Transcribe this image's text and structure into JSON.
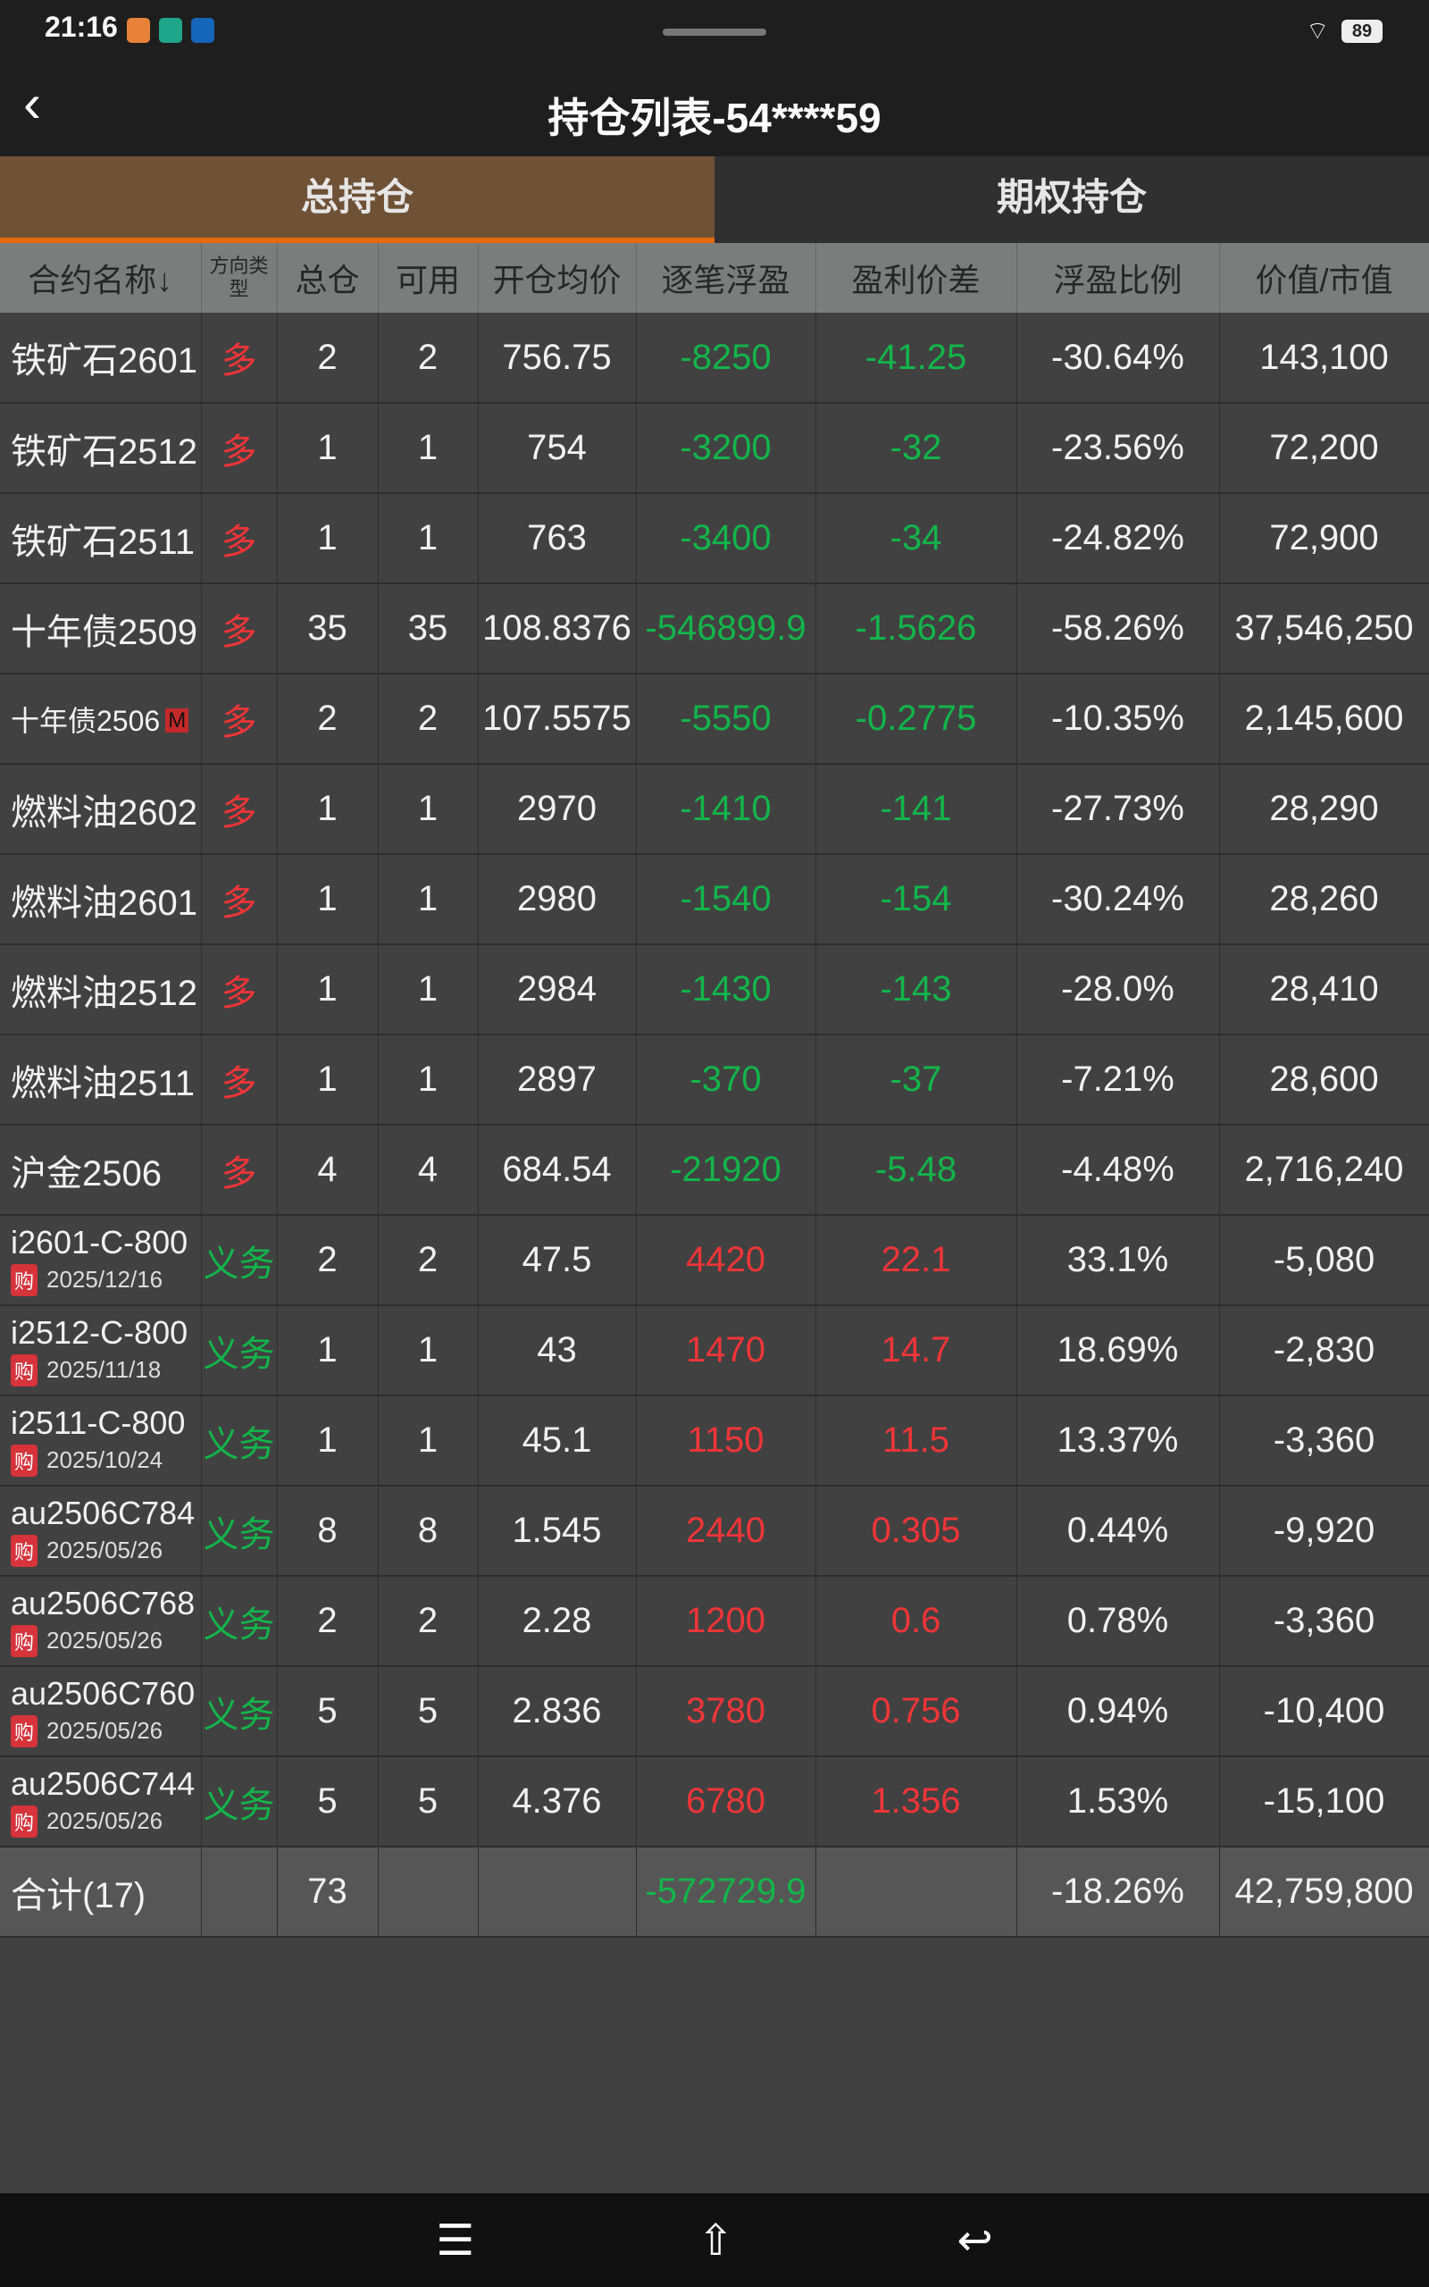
{
  "status_bar": {
    "time": "21:16",
    "battery": "89"
  },
  "header": {
    "title": "持仓列表-54****59",
    "back_icon": "chevron-left-icon"
  },
  "tabs": [
    {
      "label": "总持仓",
      "active": true
    },
    {
      "label": "期权持仓",
      "active": false
    }
  ],
  "columns": [
    "合约名称↓",
    "方向类型",
    "总仓",
    "可用",
    "开仓均价",
    "逐笔浮盈",
    "盈利价差",
    "浮盈比例",
    "价值/市值"
  ],
  "colors": {
    "up": "#f03538",
    "down": "#13b54a",
    "accent": "#e56a0e",
    "tab_active": "#6f5136"
  },
  "rows": [
    {
      "name": "铁矿石2601",
      "dir": "多",
      "total": "2",
      "avail": "2",
      "avg": "756.75",
      "pnl": "-8250",
      "diff": "-41.25",
      "ratio": "-30.64%",
      "value": "143,100"
    },
    {
      "name": "铁矿石2512",
      "dir": "多",
      "total": "1",
      "avail": "1",
      "avg": "754",
      "pnl": "-3200",
      "diff": "-32",
      "ratio": "-23.56%",
      "value": "72,200"
    },
    {
      "name": "铁矿石2511",
      "dir": "多",
      "total": "1",
      "avail": "1",
      "avg": "763",
      "pnl": "-3400",
      "diff": "-34",
      "ratio": "-24.82%",
      "value": "72,900"
    },
    {
      "name": "十年债2509",
      "dir": "多",
      "total": "35",
      "avail": "35",
      "avg": "108.8376",
      "pnl": "-546899.9",
      "diff": "-1.5626",
      "ratio": "-58.26%",
      "value": "37,546,250"
    },
    {
      "name": "十年债2506",
      "badge": "M",
      "dir": "多",
      "total": "2",
      "avail": "2",
      "avg": "107.5575",
      "pnl": "-5550",
      "diff": "-0.2775",
      "ratio": "-10.35%",
      "value": "2,145,600"
    },
    {
      "name": "燃料油2602",
      "dir": "多",
      "total": "1",
      "avail": "1",
      "avg": "2970",
      "pnl": "-1410",
      "diff": "-141",
      "ratio": "-27.73%",
      "value": "28,290"
    },
    {
      "name": "燃料油2601",
      "dir": "多",
      "total": "1",
      "avail": "1",
      "avg": "2980",
      "pnl": "-1540",
      "diff": "-154",
      "ratio": "-30.24%",
      "value": "28,260"
    },
    {
      "name": "燃料油2512",
      "dir": "多",
      "total": "1",
      "avail": "1",
      "avg": "2984",
      "pnl": "-1430",
      "diff": "-143",
      "ratio": "-28.0%",
      "value": "28,410"
    },
    {
      "name": "燃料油2511",
      "dir": "多",
      "total": "1",
      "avail": "1",
      "avg": "2897",
      "pnl": "-370",
      "diff": "-37",
      "ratio": "-7.21%",
      "value": "28,600"
    },
    {
      "name": "沪金2506",
      "dir": "多",
      "total": "4",
      "avail": "4",
      "avg": "684.54",
      "pnl": "-21920",
      "diff": "-5.48",
      "ratio": "-4.48%",
      "value": "2,716,240"
    },
    {
      "name": "i2601-C-800",
      "tag": "购",
      "date": "2025/12/16",
      "dir": "义务",
      "total": "2",
      "avail": "2",
      "avg": "47.5",
      "pnl": "4420",
      "diff": "22.1",
      "ratio": "33.1%",
      "value": "-5,080"
    },
    {
      "name": "i2512-C-800",
      "tag": "购",
      "date": "2025/11/18",
      "dir": "义务",
      "total": "1",
      "avail": "1",
      "avg": "43",
      "pnl": "1470",
      "diff": "14.7",
      "ratio": "18.69%",
      "value": "-2,830"
    },
    {
      "name": "i2511-C-800",
      "tag": "购",
      "date": "2025/10/24",
      "dir": "义务",
      "total": "1",
      "avail": "1",
      "avg": "45.1",
      "pnl": "1150",
      "diff": "11.5",
      "ratio": "13.37%",
      "value": "-3,360"
    },
    {
      "name": "au2506C784",
      "tag": "购",
      "date": "2025/05/26",
      "dir": "义务",
      "total": "8",
      "avail": "8",
      "avg": "1.545",
      "pnl": "2440",
      "diff": "0.305",
      "ratio": "0.44%",
      "value": "-9,920"
    },
    {
      "name": "au2506C768",
      "tag": "购",
      "date": "2025/05/26",
      "dir": "义务",
      "total": "2",
      "avail": "2",
      "avg": "2.28",
      "pnl": "1200",
      "diff": "0.6",
      "ratio": "0.78%",
      "value": "-3,360"
    },
    {
      "name": "au2506C760",
      "tag": "购",
      "date": "2025/05/26",
      "dir": "义务",
      "total": "5",
      "avail": "5",
      "avg": "2.836",
      "pnl": "3780",
      "diff": "0.756",
      "ratio": "0.94%",
      "value": "-10,400"
    },
    {
      "name": "au2506C744",
      "tag": "购",
      "date": "2025/05/26",
      "dir": "义务",
      "total": "5",
      "avail": "5",
      "avg": "4.376",
      "pnl": "6780",
      "diff": "1.356",
      "ratio": "1.53%",
      "value": "-15,100"
    }
  ],
  "total": {
    "name": "合计(17)",
    "total": "73",
    "pnl": "-572729.9",
    "ratio": "-18.26%",
    "value": "42,759,800"
  },
  "navbar": {
    "menu_icon": "menu-icon",
    "home_icon": "home-icon",
    "back_icon": "back-icon"
  }
}
